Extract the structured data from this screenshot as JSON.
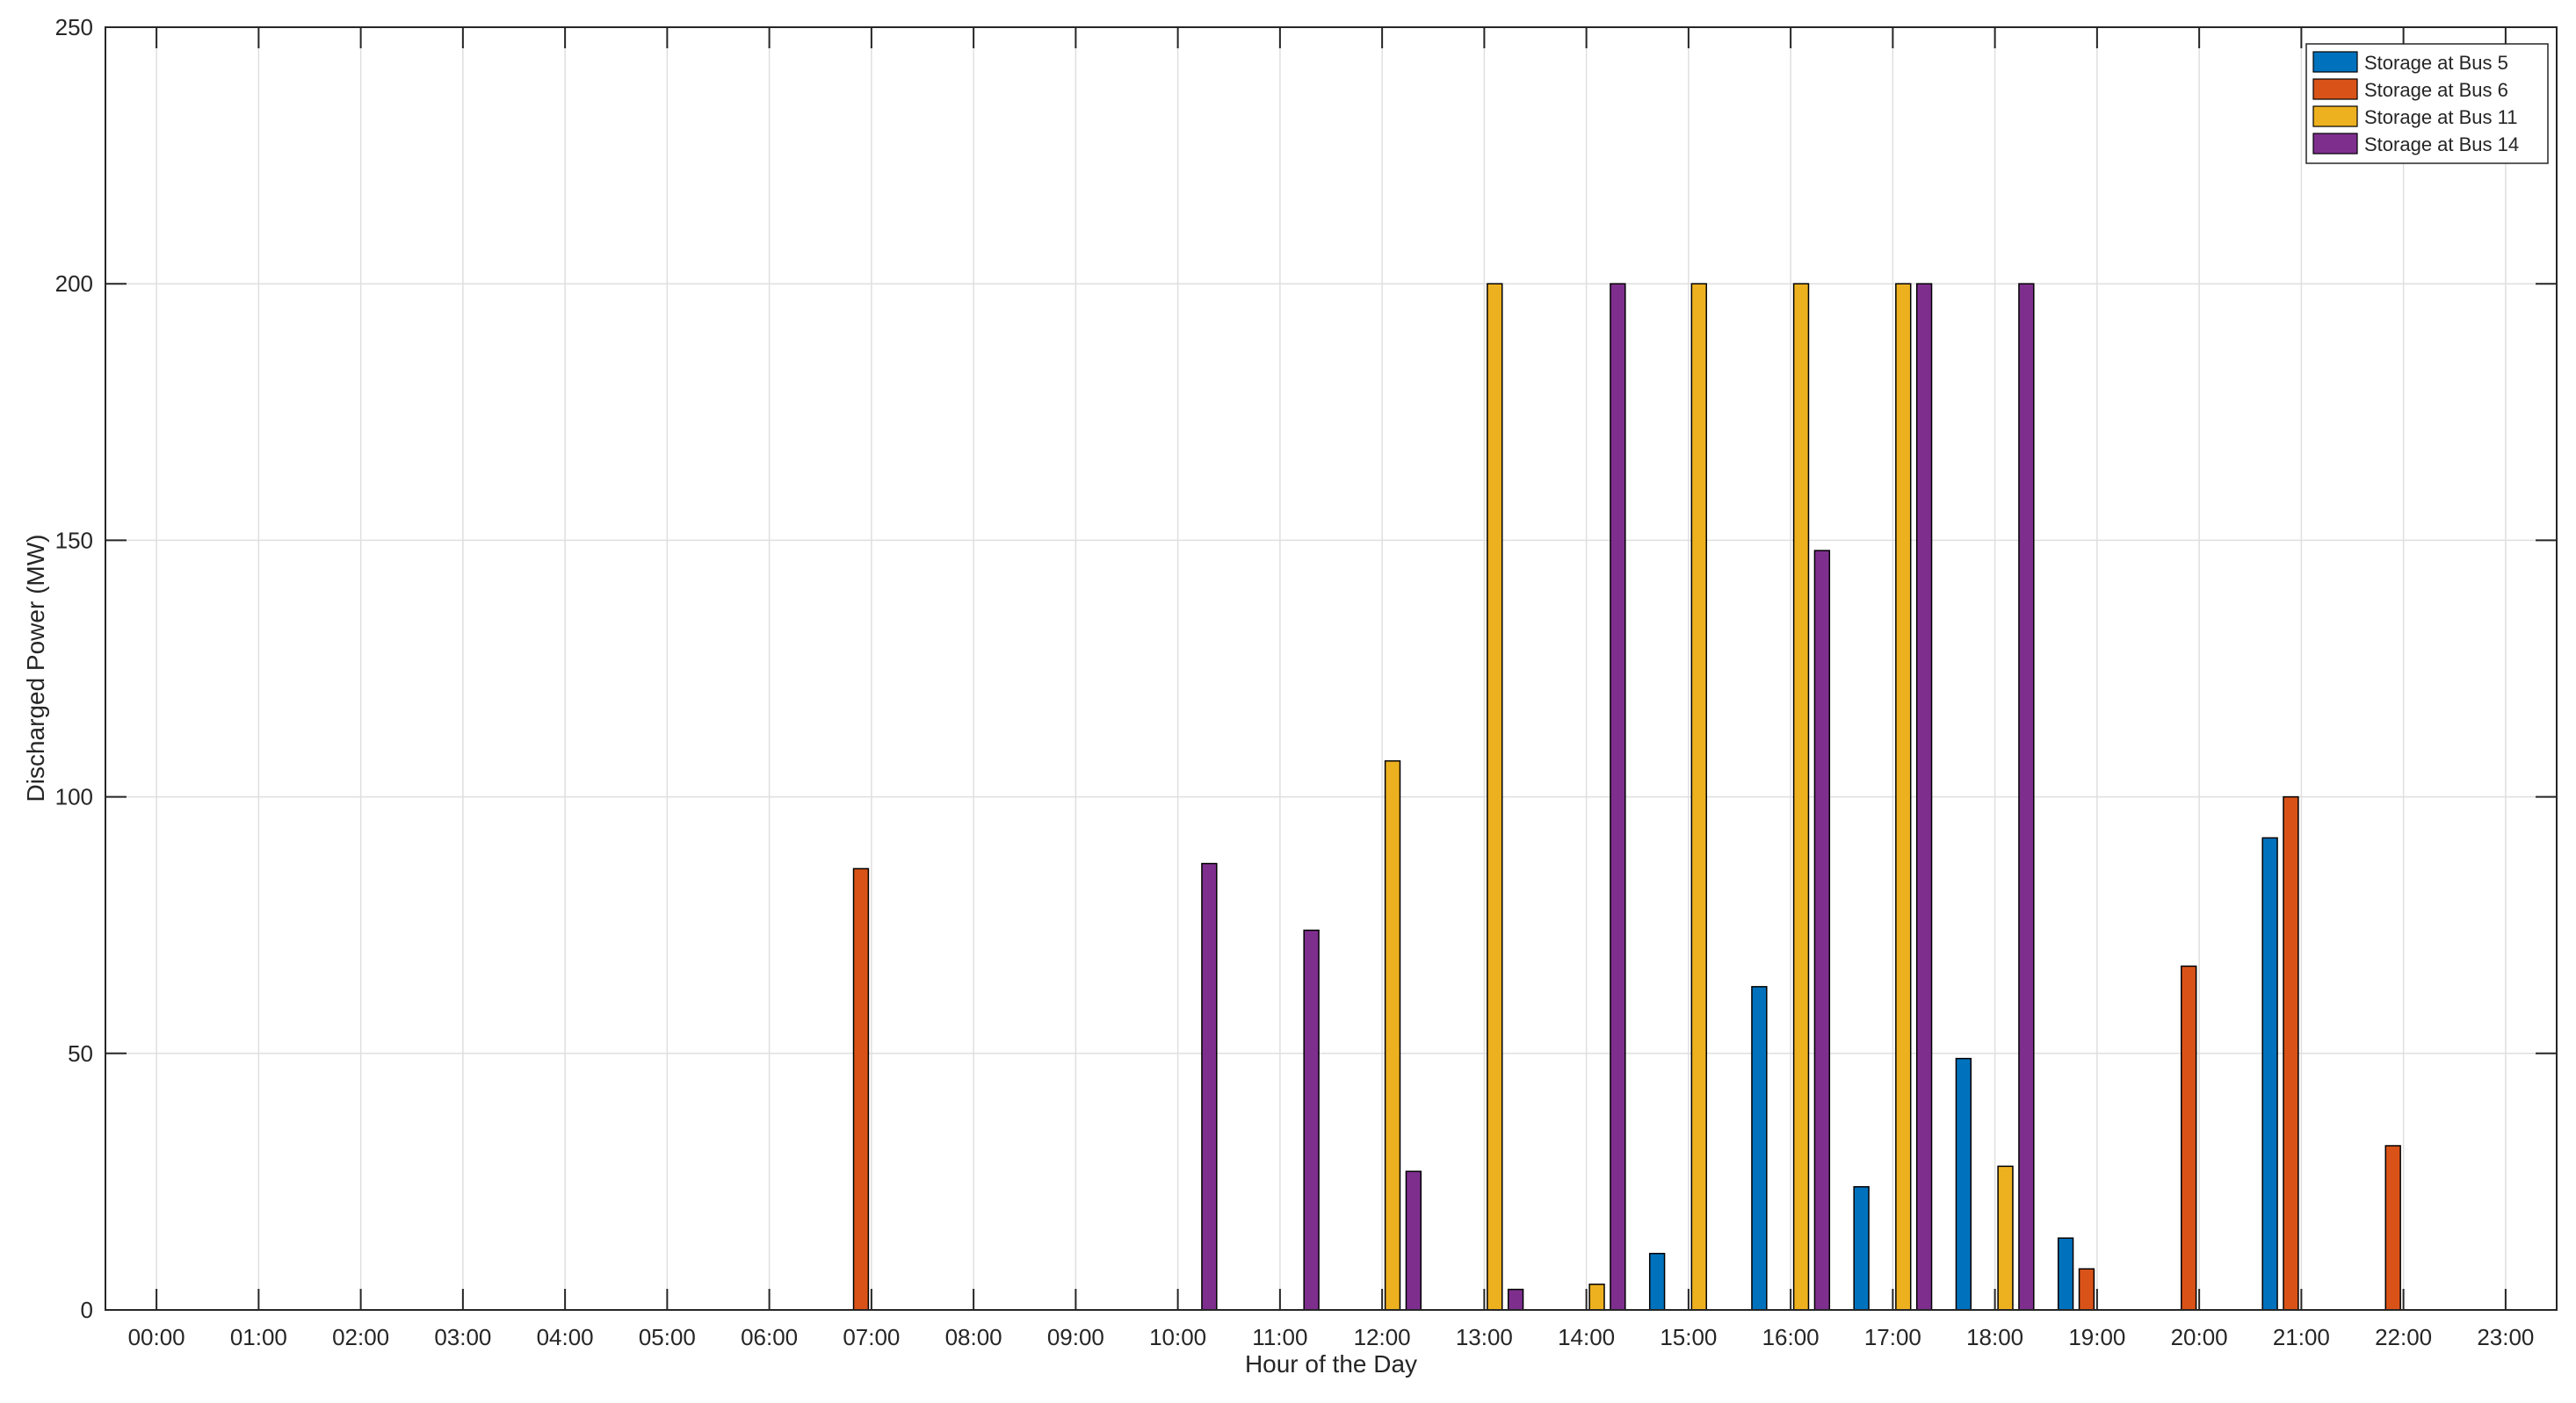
{
  "chart_data": {
    "type": "bar",
    "title": "",
    "xlabel": "Hour of the Day",
    "ylabel": "Discharged Power (MW)",
    "ylim": [
      0,
      250
    ],
    "yticks": [
      0,
      50,
      100,
      150,
      200,
      250
    ],
    "grid": true,
    "legend_position": "top-right",
    "categories": [
      "00:00",
      "01:00",
      "02:00",
      "03:00",
      "04:00",
      "05:00",
      "06:00",
      "07:00",
      "08:00",
      "09:00",
      "10:00",
      "11:00",
      "12:00",
      "13:00",
      "14:00",
      "15:00",
      "16:00",
      "17:00",
      "18:00",
      "19:00",
      "20:00",
      "21:00",
      "22:00",
      "23:00"
    ],
    "series": [
      {
        "name": "Storage at Bus 5",
        "color": "#0072BD",
        "values": [
          0,
          0,
          0,
          0,
          0,
          0,
          0,
          0,
          0,
          0,
          0,
          0,
          0,
          0,
          0,
          11,
          63,
          24,
          49,
          14,
          0,
          92,
          0,
          0
        ]
      },
      {
        "name": "Storage at Bus 6",
        "color": "#D95319",
        "values": [
          0,
          0,
          0,
          0,
          0,
          0,
          0,
          86,
          0,
          0,
          0,
          0,
          0,
          0,
          0,
          0,
          0,
          0,
          0,
          8,
          67,
          100,
          32,
          0
        ]
      },
      {
        "name": "Storage at Bus 11",
        "color": "#EDB120",
        "values": [
          0,
          0,
          0,
          0,
          0,
          0,
          0,
          0,
          0,
          0,
          0,
          0,
          107,
          200,
          5,
          200,
          200,
          200,
          28,
          0,
          0,
          0,
          0,
          0
        ]
      },
      {
        "name": "Storage at Bus 14",
        "color": "#7E2F8E",
        "values": [
          0,
          0,
          0,
          0,
          0,
          0,
          0,
          0,
          0,
          0,
          87,
          74,
          27,
          4,
          200,
          0,
          148,
          200,
          200,
          0,
          0,
          0,
          0,
          0
        ]
      }
    ]
  }
}
